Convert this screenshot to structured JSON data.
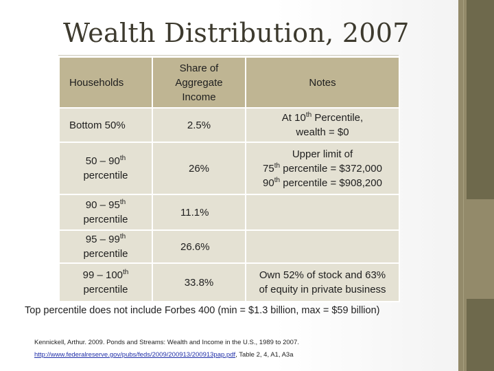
{
  "title": "Wealth Distribution, 2007",
  "table": {
    "headers": [
      "Households",
      "Share of Aggregate Income",
      "Notes"
    ],
    "rows": [
      {
        "household_pre": "Bottom 50%",
        "household_sup": "",
        "household_post": "",
        "share": "2.5%",
        "share_bold": true,
        "notes_lines": [
          {
            "pre": "At 10",
            "sup": "th",
            "post": " Percentile,"
          },
          {
            "pre": "wealth = $0",
            "sup": "",
            "post": ""
          }
        ]
      },
      {
        "household_pre": "50 – 90",
        "household_sup": "th",
        "household_post": "percentile",
        "share": "26%",
        "share_bold": false,
        "notes_lines": [
          {
            "pre": "Upper limit of",
            "sup": "",
            "post": ""
          },
          {
            "pre": "75",
            "sup": "th",
            "post": " percentile = $372,000"
          },
          {
            "pre": "90",
            "sup": "th",
            "post": " percentile = $908,200"
          }
        ]
      },
      {
        "household_pre": "90 – 95",
        "household_sup": "th",
        "household_post": "percentile",
        "share": "11.1%",
        "share_bold": false,
        "notes_lines": []
      },
      {
        "household_pre": "95 – 99",
        "household_sup": "th",
        "household_post": "percentile",
        "share": "26.6%",
        "share_bold": false,
        "notes_lines": []
      },
      {
        "household_pre": "99 – 100",
        "household_sup": "th",
        "household_post": "percentile",
        "share": "33.8%",
        "share_bold": true,
        "notes_lines": [
          {
            "pre": "Own 52% of stock and 63%",
            "sup": "",
            "post": ""
          },
          {
            "pre": "of equity in private business",
            "sup": "",
            "post": ""
          }
        ]
      }
    ]
  },
  "footnote": "Top percentile does not include Forbes 400 (min = $1.3 billion, max = $59 billion)",
  "citation": {
    "line1": "Kennickell, Arthur. 2009. Ponds and Streams: Wealth and Income in the U.S., 1989 to 2007.",
    "link": "http://www.federalreserve.gov/pubs/feds/2009/200913/200913pap.pdf",
    "after_link": ", Table 2, 4, A1, A3a"
  },
  "colors": {
    "header_bg": "#bfb593",
    "cell_bg": "#e4e1d3",
    "side_stripe": "#938a6a",
    "side_block": "#6e694c",
    "link": "#1f2ea8"
  }
}
